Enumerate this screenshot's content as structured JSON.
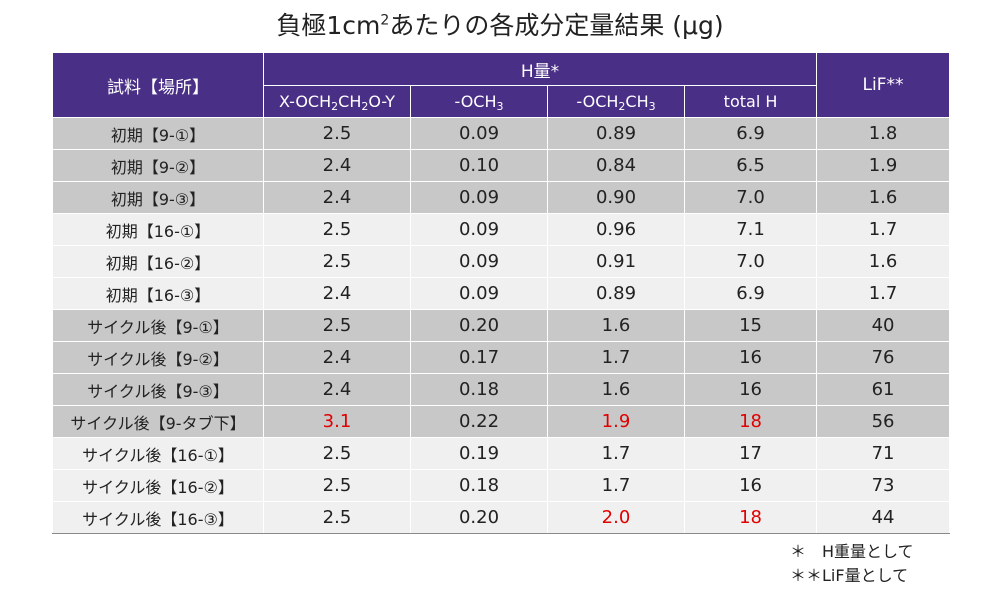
{
  "title": {
    "prefix": "負極1cm",
    "sup": "2",
    "suffix": "あたりの各成分定量結果 (μg)"
  },
  "table": {
    "header": {
      "sample": "試料【場所】",
      "h_group": "H量*",
      "lif": "LiF**",
      "sub": [
        {
          "parts": [
            [
              "X-OCH",
              ""
            ],
            [
              "2",
              true
            ],
            [
              "CH",
              ""
            ],
            [
              "2",
              true
            ],
            [
              "O-Y",
              ""
            ]
          ]
        },
        {
          "parts": [
            [
              "-OCH",
              ""
            ],
            [
              "3",
              true
            ]
          ]
        },
        {
          "parts": [
            [
              "-OCH",
              ""
            ],
            [
              "2",
              true
            ],
            [
              "CH",
              ""
            ],
            [
              "3",
              true
            ]
          ]
        },
        {
          "parts": [
            [
              "total  H",
              ""
            ]
          ]
        }
      ]
    },
    "rows": [
      {
        "name": "初期【9-①】",
        "c1": "2.5",
        "c2": "0.09",
        "c3": "0.89",
        "c4": "6.9",
        "c5": "1.8",
        "shade": "g1"
      },
      {
        "name": "初期【9-②】",
        "c1": "2.4",
        "c2": "0.10",
        "c3": "0.84",
        "c4": "6.5",
        "c5": "1.9",
        "shade": "g1"
      },
      {
        "name": "初期【9-③】",
        "c1": "2.4",
        "c2": "0.09",
        "c3": "0.90",
        "c4": "7.0",
        "c5": "1.6",
        "shade": "g1"
      },
      {
        "name": "初期【16-①】",
        "c1": "2.5",
        "c2": "0.09",
        "c3": "0.96",
        "c4": "7.1",
        "c5": "1.7",
        "shade": "g2"
      },
      {
        "name": "初期【16-②】",
        "c1": "2.5",
        "c2": "0.09",
        "c3": "0.91",
        "c4": "7.0",
        "c5": "1.6",
        "shade": "g2"
      },
      {
        "name": "初期【16-③】",
        "c1": "2.4",
        "c2": "0.09",
        "c3": "0.89",
        "c4": "6.9",
        "c5": "1.7",
        "shade": "g2"
      },
      {
        "name": "サイクル後【9-①】",
        "c1": "2.5",
        "c2": "0.20",
        "c3": "1.6",
        "c4": "15",
        "c5": "40",
        "shade": "g1",
        "sep": true
      },
      {
        "name": "サイクル後【9-②】",
        "c1": "2.4",
        "c2": "0.17",
        "c3": "1.7",
        "c4": "16",
        "c5": "76",
        "shade": "g1"
      },
      {
        "name": "サイクル後【9-③】",
        "c1": "2.4",
        "c2": "0.18",
        "c3": "1.6",
        "c4": "16",
        "c5": "61",
        "shade": "g1"
      },
      {
        "name": "サイクル後【9-タブ下】",
        "c1": "3.1",
        "c2": "0.22",
        "c3": "1.9",
        "c4": "18",
        "c5": "56",
        "shade": "g1",
        "red": [
          "c1",
          "c3",
          "c4"
        ]
      },
      {
        "name": "サイクル後【16-①】",
        "c1": "2.5",
        "c2": "0.19",
        "c3": "1.7",
        "c4": "17",
        "c5": "71",
        "shade": "g2"
      },
      {
        "name": "サイクル後【16-②】",
        "c1": "2.5",
        "c2": "0.18",
        "c3": "1.7",
        "c4": "16",
        "c5": "73",
        "shade": "g2"
      },
      {
        "name": "サイクル後【16-③】",
        "c1": "2.5",
        "c2": "0.20",
        "c3": "2.0",
        "c4": "18",
        "c5": "44",
        "shade": "g2",
        "red": [
          "c3",
          "c4"
        ]
      }
    ]
  },
  "notes": {
    "n1": "＊　H重量として",
    "n2": "＊＊LiF量として"
  },
  "colors": {
    "header_bg": "#4a2f86",
    "highlight": "#e00000",
    "shade_dark": "#c8c8c8",
    "shade_light": "#f0f0f0"
  }
}
